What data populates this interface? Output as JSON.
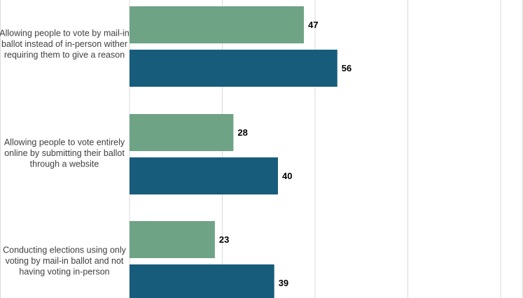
{
  "chart_data": {
    "type": "bar",
    "orientation": "horizontal",
    "categories": [
      "Allowing people to vote by mail-in ballot instead of in-person wither requiring them to give a reason",
      "Allowing people to vote entirely online by submitting their ballot through a website",
      "Conducting elections using only voting by mail-in ballot and not having voting in-person"
    ],
    "category_lines": [
      [
        "Allowing people to vote by mail-in",
        "ballot instead of in-person wither",
        "requiring them to give a reason"
      ],
      [
        "Allowing people to vote entirely",
        "online by submitting their ballot",
        "through a website"
      ],
      [
        "Conducting elections using only",
        "voting by mail-in ballot and not",
        "having voting in-person"
      ]
    ],
    "series": [
      {
        "values": [
          47,
          28,
          23
        ],
        "color": "#6fa386"
      },
      {
        "values": [
          56,
          40,
          39
        ],
        "color": "#185c7c"
      }
    ],
    "xlim": [
      0,
      100
    ],
    "grid": true,
    "legend": "none"
  }
}
